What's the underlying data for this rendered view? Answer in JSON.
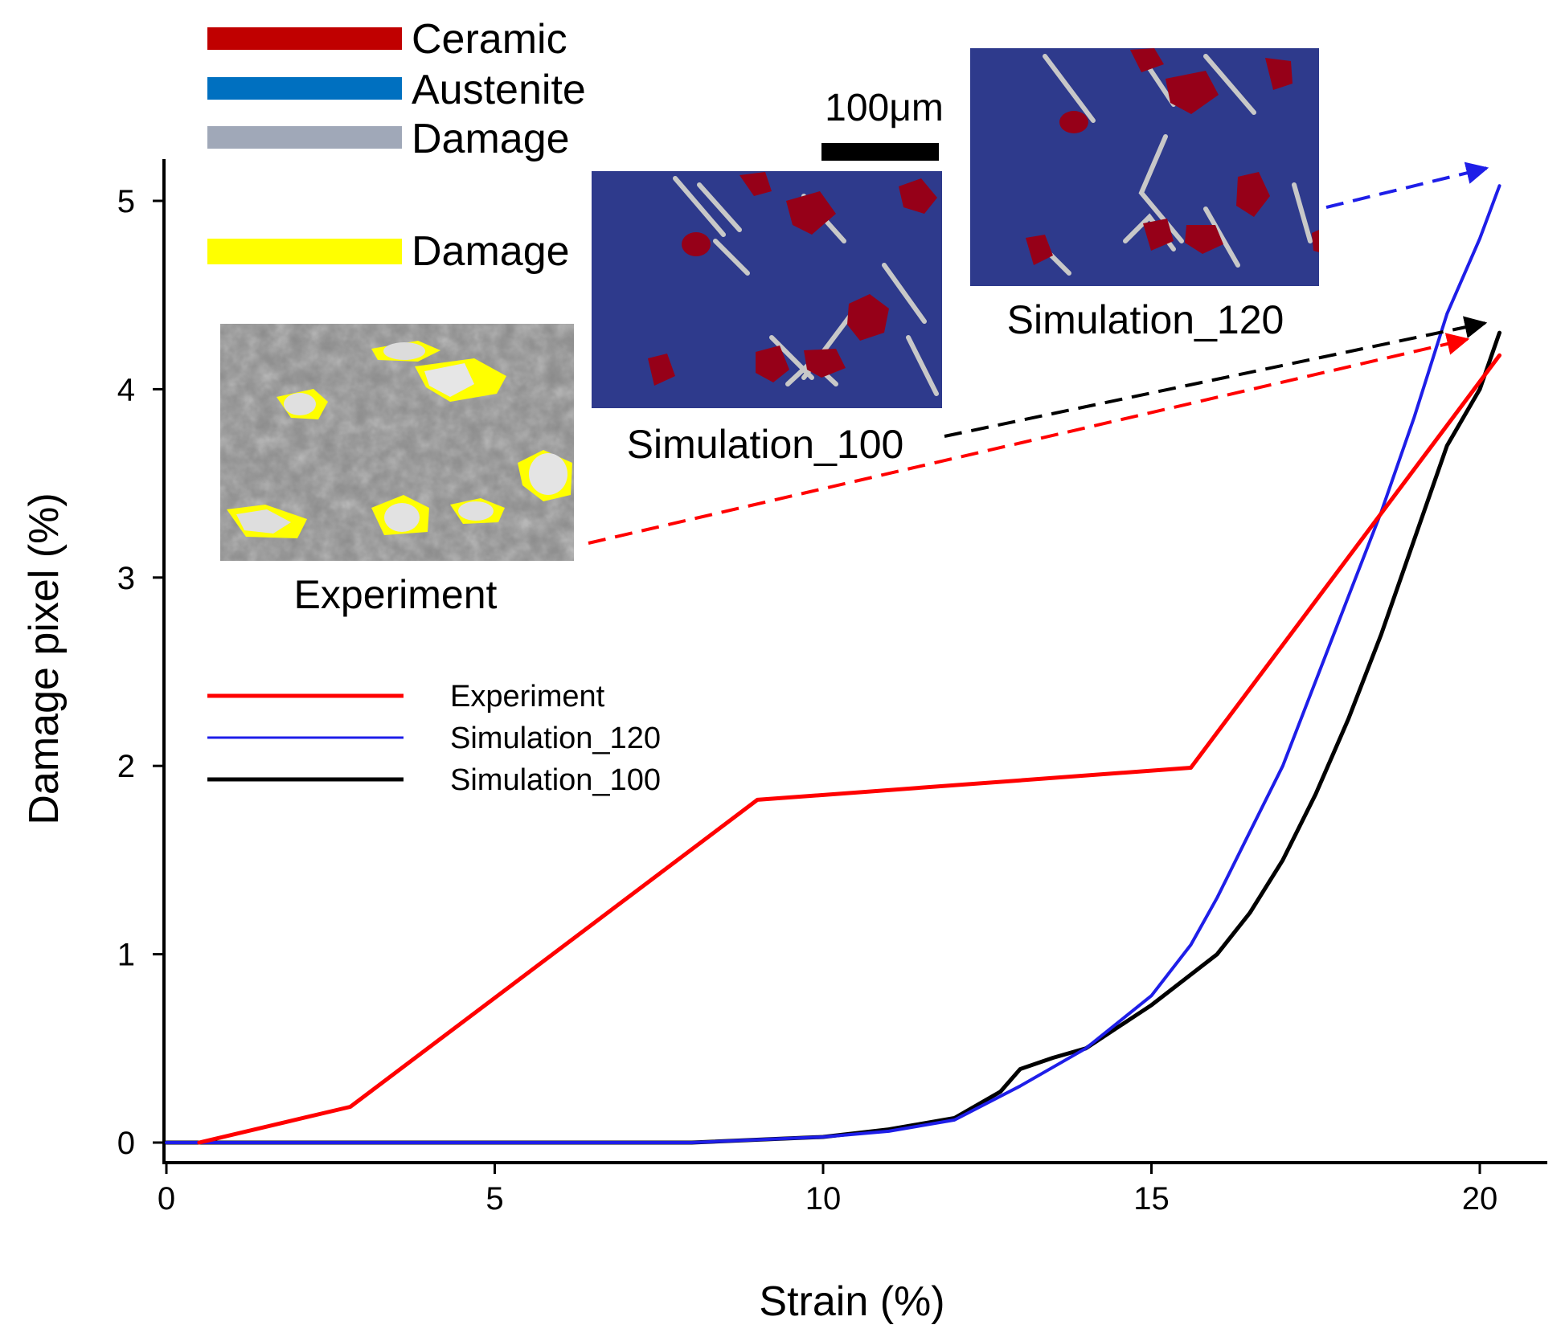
{
  "chart_data": {
    "type": "line",
    "xlabel": "Strain (%)",
    "ylabel": "Damage pixel (%)",
    "xlim": [
      0,
      21
    ],
    "ylim": [
      0,
      5.2
    ],
    "xticks": [
      0,
      5,
      10,
      15,
      20
    ],
    "yticks": [
      0,
      1,
      2,
      3,
      4,
      5
    ],
    "grid": false,
    "legend_position": "middle-left",
    "series": [
      {
        "name": "Experiment",
        "color": "#ff0000",
        "x": [
          0.5,
          2.8,
          9.0,
          15.6,
          20.3
        ],
        "y": [
          0.0,
          0.19,
          1.82,
          1.99,
          4.18
        ]
      },
      {
        "name": "Simulation_120",
        "color": "#1e1ee8",
        "x": [
          0,
          8.0,
          10.0,
          11.0,
          12.0,
          13.0,
          14.0,
          15.0,
          15.6,
          16.0,
          16.5,
          17.0,
          17.5,
          18.0,
          18.5,
          19.0,
          19.5,
          20.0,
          20.3
        ],
        "y": [
          0,
          0,
          0.03,
          0.06,
          0.12,
          0.3,
          0.5,
          0.78,
          1.05,
          1.3,
          1.65,
          2.0,
          2.45,
          2.9,
          3.35,
          3.85,
          4.4,
          4.8,
          5.08
        ]
      },
      {
        "name": "Simulation_100",
        "color": "#000000",
        "x": [
          0,
          8.0,
          10.0,
          11.0,
          12.0,
          12.7,
          13.0,
          13.5,
          14.0,
          15.0,
          16.0,
          16.5,
          17.0,
          17.5,
          18.0,
          18.5,
          19.0,
          19.5,
          20.0,
          20.3
        ],
        "y": [
          0,
          0,
          0.03,
          0.07,
          0.13,
          0.27,
          0.39,
          0.45,
          0.5,
          0.73,
          1.0,
          1.22,
          1.5,
          1.85,
          2.25,
          2.7,
          3.2,
          3.7,
          4.0,
          4.3
        ]
      }
    ],
    "materials_legend": [
      {
        "label": "Ceramic",
        "color": "#c00000"
      },
      {
        "label": "Austenite",
        "color": "#0070c0"
      },
      {
        "label": "Damage",
        "color": "#a0a8b8"
      },
      {
        "label": "Damage",
        "color": "#ffff00"
      }
    ],
    "insets": {
      "experiment": {
        "caption": "Experiment"
      },
      "simulation_100": {
        "caption": "Simulation_100"
      },
      "simulation_120": {
        "caption": "Simulation_120"
      },
      "scale_bar": "100μm"
    },
    "annotations": [
      {
        "from": "Experiment",
        "to_series": "Experiment",
        "color": "#ff0000",
        "to_x": 20.3,
        "to_y": 4.18
      },
      {
        "from": "Simulation_100",
        "to_series": "Simulation_100",
        "color": "#000000",
        "to_x": 20.3,
        "to_y": 4.3
      },
      {
        "from": "Simulation_120",
        "to_series": "Simulation_120",
        "color": "#1e1ee8",
        "to_x": 20.3,
        "to_y": 5.08
      }
    ]
  }
}
